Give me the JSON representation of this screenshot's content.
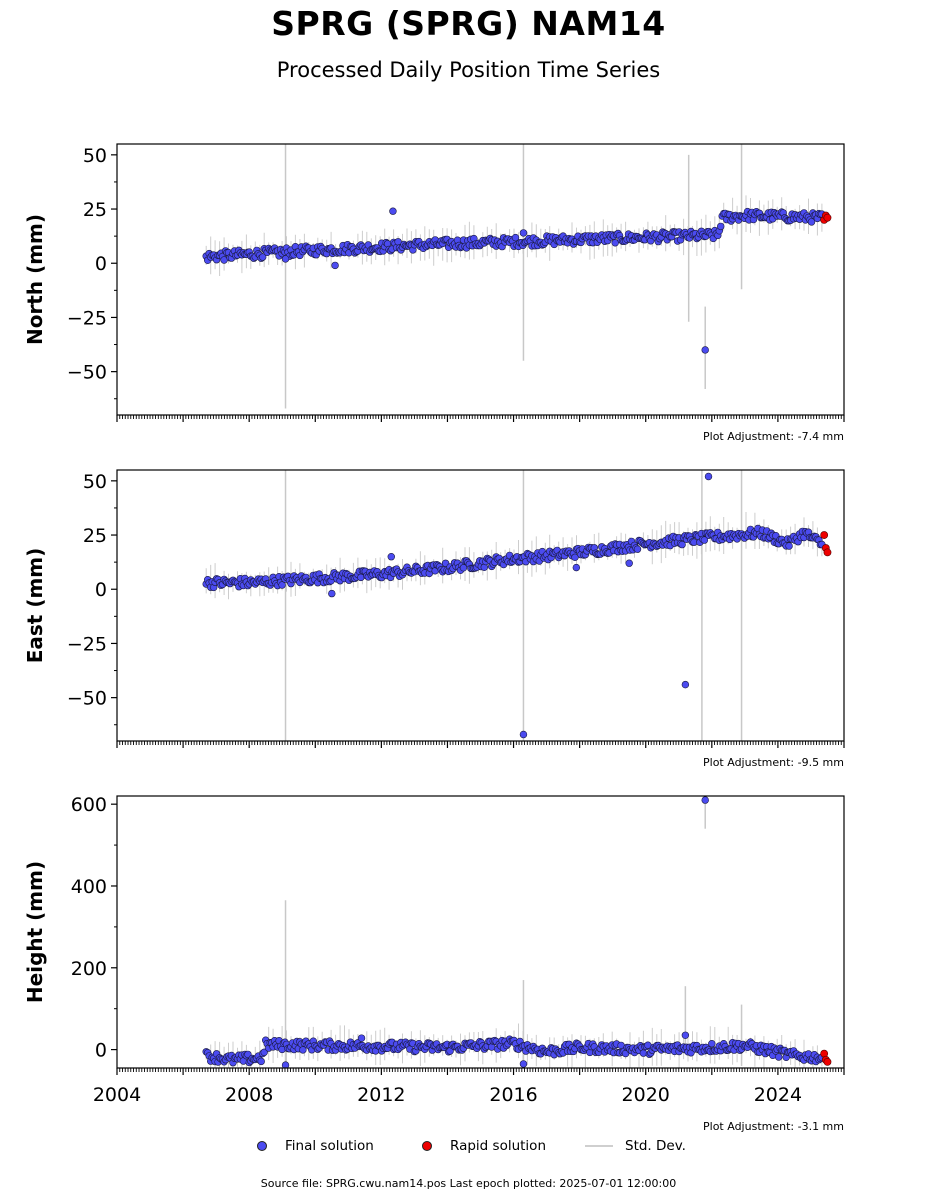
{
  "title": "SPRG (SPRG) NAM14",
  "subtitle": "Processed Daily Position Time Series",
  "legend": {
    "final": "Final solution",
    "rapid": "Rapid solution",
    "std": "Std. Dev."
  },
  "footer": "Source file: SPRG.cwu.nam14.pos  Last epoch plotted: 2025-07-01 12:00:00",
  "colors": {
    "final": "#4b4bf0",
    "rapid": "#ee0000",
    "std": "#c8c8c8",
    "edge": "#1a1a40"
  },
  "chart_data": [
    {
      "type": "scatter",
      "ylabel": "North (mm)",
      "adjustment": "Plot Adjustment: -7.4 mm",
      "xlim": [
        2004.0,
        2026.0
      ],
      "ylim": [
        -70,
        55
      ],
      "yticks": [
        50,
        25,
        0,
        -25,
        -50
      ],
      "ytick_labels": [
        "50",
        "25",
        "0",
        "−25",
        "−50"
      ],
      "trend": [
        [
          2006.7,
          3
        ],
        [
          2010,
          6
        ],
        [
          2014,
          9
        ],
        [
          2016.3,
          10
        ],
        [
          2018,
          11
        ],
        [
          2022.2,
          13
        ],
        [
          2022.3,
          21
        ],
        [
          2023,
          22
        ],
        [
          2025.4,
          21
        ]
      ],
      "outliers": [
        [
          2012.35,
          24
        ],
        [
          2021.8,
          -40
        ],
        [
          2009.1,
          2
        ],
        [
          2010.6,
          -1
        ],
        [
          2016.3,
          14
        ]
      ],
      "std_spikes": [
        [
          2009.1,
          -67,
          55
        ],
        [
          2016.3,
          -45,
          55
        ],
        [
          2021.3,
          -27,
          50
        ],
        [
          2021.8,
          -58,
          -20
        ],
        [
          2022.9,
          -12,
          55
        ]
      ],
      "rapid": [
        [
          2025.4,
          20
        ],
        [
          2025.45,
          22
        ],
        [
          2025.5,
          21
        ]
      ]
    },
    {
      "type": "scatter",
      "ylabel": "East (mm)",
      "adjustment": "Plot Adjustment: -9.5 mm",
      "xlim": [
        2004.0,
        2026.0
      ],
      "ylim": [
        -70,
        55
      ],
      "yticks": [
        50,
        25,
        0,
        -25,
        -50
      ],
      "ytick_labels": [
        "50",
        "25",
        "0",
        "−25",
        "−50"
      ],
      "trend": [
        [
          2006.7,
          3
        ],
        [
          2008,
          3
        ],
        [
          2010,
          5
        ],
        [
          2012,
          7
        ],
        [
          2014,
          10
        ],
        [
          2016,
          14
        ],
        [
          2018,
          17
        ],
        [
          2020,
          21
        ],
        [
          2022,
          24
        ],
        [
          2023.5,
          26
        ],
        [
          2024.3,
          21
        ],
        [
          2024.8,
          26
        ],
        [
          2025.4,
          20
        ]
      ],
      "outliers": [
        [
          2016.3,
          -67
        ],
        [
          2021.2,
          -44
        ],
        [
          2021.9,
          52
        ],
        [
          2012.3,
          15
        ],
        [
          2010.5,
          -2
        ],
        [
          2019.5,
          12
        ],
        [
          2017.9,
          10
        ]
      ],
      "std_spikes": [
        [
          2009.1,
          -70,
          55
        ],
        [
          2016.3,
          -70,
          55
        ],
        [
          2021.7,
          -70,
          55
        ],
        [
          2022.9,
          -70,
          55
        ]
      ],
      "rapid": [
        [
          2025.4,
          25
        ],
        [
          2025.45,
          19
        ],
        [
          2025.5,
          17
        ]
      ]
    },
    {
      "type": "scatter",
      "ylabel": "Height (mm)",
      "adjustment": "Plot Adjustment: -3.1 mm",
      "xlim": [
        2004.0,
        2026.0
      ],
      "ylim": [
        -45,
        620
      ],
      "yticks": [
        600,
        400,
        200,
        0
      ],
      "ytick_labels": [
        "600",
        "400",
        "200",
        "0"
      ],
      "xticks": [
        2004,
        2008,
        2012,
        2016,
        2020,
        2024
      ],
      "xtick_labels": [
        "2004",
        "2008",
        "2012",
        "2016",
        "2020",
        "2024"
      ],
      "trend": [
        [
          2006.7,
          -15
        ],
        [
          2007.5,
          -25
        ],
        [
          2008.4,
          -20
        ],
        [
          2008.5,
          12
        ],
        [
          2010,
          10
        ],
        [
          2012,
          8
        ],
        [
          2014,
          5
        ],
        [
          2016,
          15
        ],
        [
          2017,
          -5
        ],
        [
          2018,
          5
        ],
        [
          2020,
          0
        ],
        [
          2022,
          5
        ],
        [
          2023,
          10
        ],
        [
          2024.5,
          -15
        ],
        [
          2025.4,
          -20
        ]
      ],
      "outliers": [
        [
          2021.8,
          610
        ],
        [
          2021.2,
          35
        ],
        [
          2016.3,
          -35
        ],
        [
          2009.1,
          -38
        ],
        [
          2011.4,
          28
        ]
      ],
      "std_spikes": [
        [
          2009.1,
          -40,
          365
        ],
        [
          2016.3,
          -40,
          170
        ],
        [
          2021.2,
          -10,
          155
        ],
        [
          2021.8,
          540,
          620
        ],
        [
          2022.9,
          -40,
          110
        ]
      ],
      "rapid": [
        [
          2025.4,
          -10
        ],
        [
          2025.45,
          -25
        ],
        [
          2025.5,
          -30
        ]
      ]
    }
  ]
}
